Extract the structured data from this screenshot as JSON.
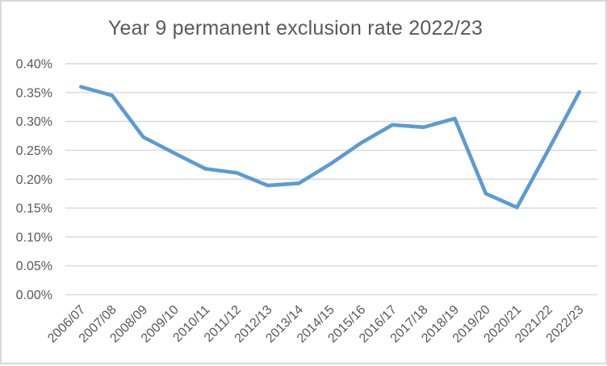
{
  "chart": {
    "title": "Year 9 permanent exclusion rate 2022/23"
  },
  "chart_data": {
    "type": "line",
    "title": "Year 9 permanent exclusion rate 2022/23",
    "categories": [
      "2006/07",
      "2007/08",
      "2008/09",
      "2009/10",
      "2010/11",
      "2011/12",
      "2012/13",
      "2013/14",
      "2014/15",
      "2015/16",
      "2016/17",
      "2017/18",
      "2018/19",
      "2019/20",
      "2020/21",
      "2021/22",
      "2022/23"
    ],
    "values": [
      0.36,
      0.345,
      0.273,
      0.245,
      0.218,
      0.211,
      0.189,
      0.193,
      0.226,
      0.263,
      0.294,
      0.29,
      0.305,
      0.175,
      0.151,
      0.25,
      0.351
    ],
    "value_unit": "percent",
    "yticks": [
      "0.00%",
      "0.05%",
      "0.10%",
      "0.15%",
      "0.20%",
      "0.25%",
      "0.30%",
      "0.35%",
      "0.40%"
    ],
    "ylim": [
      0,
      0.4
    ],
    "grid": true,
    "legend": false,
    "xlabel": "",
    "ylabel": "",
    "colors": {
      "line": "#5B9BD5",
      "grid": "#D9D9D9",
      "text": "#595959",
      "border": "#D9D9D9",
      "background": "#FFFFFF"
    }
  }
}
